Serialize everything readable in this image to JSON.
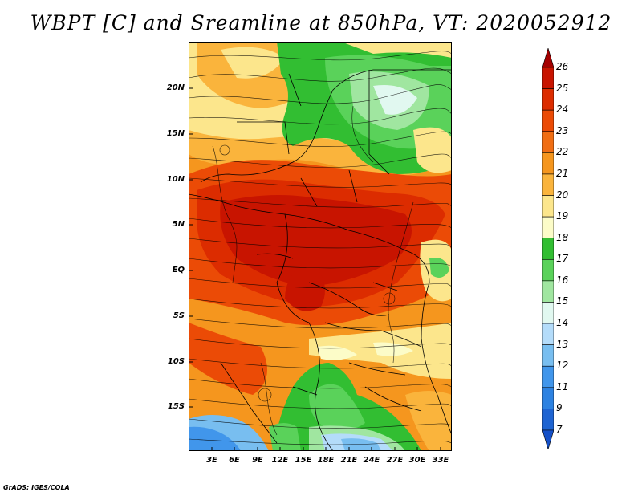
{
  "title": "WBPT [C] and Sreamline at 850hPa, VT: 2020052912",
  "credit": "GrADS: IGES/COLA",
  "lat_labels": [
    "20N",
    "15N",
    "10N",
    "5N",
    "EQ",
    "5S",
    "10S",
    "15S"
  ],
  "lon_labels": [
    "3E",
    "6E",
    "9E",
    "12E",
    "15E",
    "18E",
    "21E",
    "24E",
    "27E",
    "30E",
    "33E"
  ],
  "colorbar": {
    "levels": [
      "26",
      "25",
      "24",
      "23",
      "22",
      "21",
      "20",
      "19",
      "18",
      "17",
      "16",
      "15",
      "14",
      "13",
      "12",
      "11",
      "9",
      "7"
    ],
    "colors": [
      "#a50000",
      "#c81400",
      "#dc2c00",
      "#eb4b06",
      "#f06e14",
      "#f5961e",
      "#fab43c",
      "#fce68c",
      "#fcfcc8",
      "#32be32",
      "#5ad25a",
      "#a0e6a0",
      "#e1f8f0",
      "#b4dcfa",
      "#78bef0",
      "#4196eb",
      "#2d82e1",
      "#1e64d2",
      "#1450c8"
    ]
  },
  "icons": {
    "map": "streamline-map-graphic",
    "colorbar": "colorbar-graphic"
  }
}
